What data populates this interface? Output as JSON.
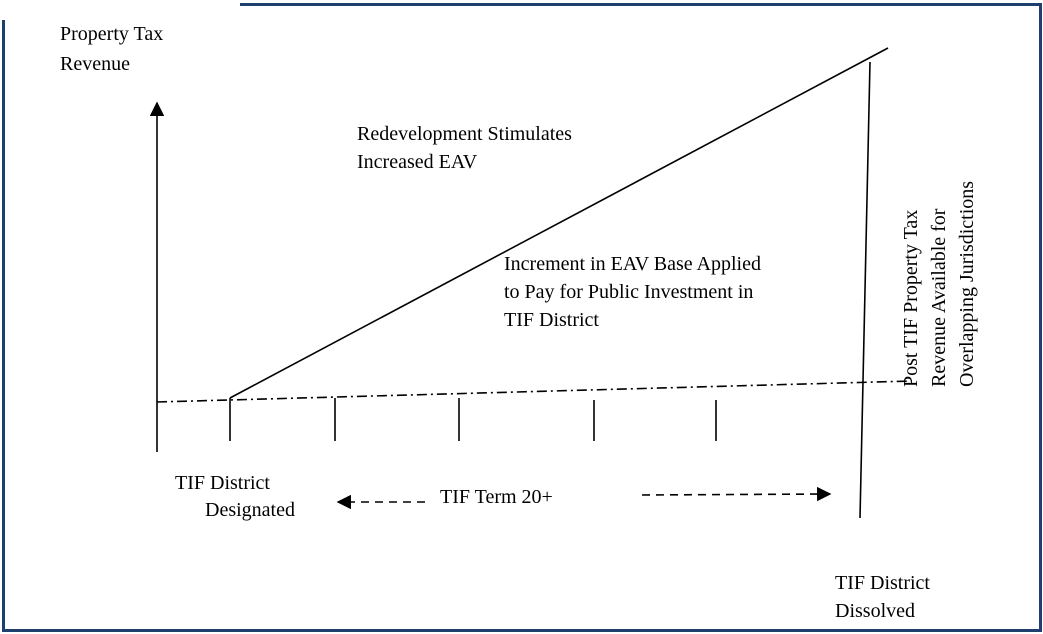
{
  "labels": {
    "y_axis": [
      "Property Tax",
      "Revenue"
    ],
    "growth": [
      "Redevelopment Stimulates",
      "Increased EAV"
    ],
    "increment": [
      "Increment in EAV Base Applied",
      "to Pay for Public Investment in",
      "TIF District"
    ],
    "post_tif": [
      "Post TIF Property Tax",
      "Revenue Available for",
      "Overlapping Jurisdictions"
    ],
    "designated": [
      "TIF District",
      "Designated"
    ],
    "term": "TIF Term 20+",
    "dissolved": [
      "TIF District",
      "Dissolved"
    ]
  }
}
